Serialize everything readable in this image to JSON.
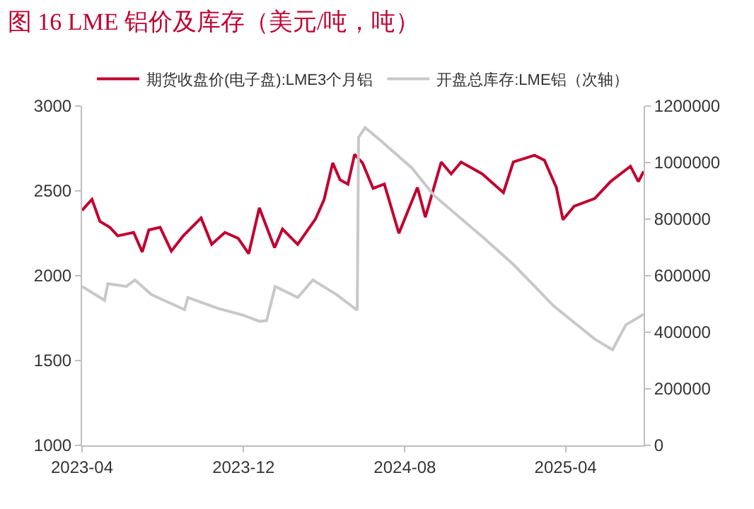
{
  "chart_data": {
    "type": "line",
    "title": "图 16 LME 铝价及库存（美元/吨，吨）",
    "series": [
      {
        "name": "期货收盘价(电子盘):LME3个月铝",
        "color": "#c00030",
        "x": [
          "2023-04-01",
          "2023-04-16",
          "2023-04-28",
          "2023-05-13",
          "2023-05-25",
          "2023-06-18",
          "2023-07-01",
          "2023-07-11",
          "2023-07-28",
          "2023-08-14",
          "2023-09-01",
          "2023-09-28",
          "2023-10-14",
          "2023-11-03",
          "2023-11-23",
          "2023-12-09",
          "2023-12-25",
          "2024-01-17",
          "2024-01-29",
          "2024-02-21",
          "2024-03-19",
          "2024-04-01",
          "2024-04-14",
          "2024-04-25",
          "2024-05-07",
          "2024-05-17",
          "2024-05-29",
          "2024-06-14",
          "2024-07-01",
          "2024-07-23",
          "2024-08-20",
          "2024-09-01",
          "2024-09-25",
          "2024-10-10",
          "2024-10-25",
          "2024-11-26",
          "2024-12-28",
          "2025-01-12",
          "2025-02-13",
          "2025-02-28",
          "2025-03-18",
          "2025-03-28",
          "2025-04-14",
          "2025-05-15",
          "2025-06-08",
          "2025-07-08",
          "2025-07-20",
          "2025-07-28"
        ],
        "values": [
          2385,
          2450,
          2320,
          2285,
          2235,
          2255,
          2140,
          2270,
          2285,
          2145,
          2235,
          2340,
          2185,
          2255,
          2220,
          2130,
          2400,
          2165,
          2275,
          2185,
          2335,
          2450,
          2665,
          2565,
          2540,
          2715,
          2665,
          2515,
          2540,
          2250,
          2520,
          2345,
          2670,
          2600,
          2670,
          2600,
          2490,
          2670,
          2710,
          2680,
          2520,
          2330,
          2410,
          2455,
          2555,
          2645,
          2555,
          2615
        ]
      },
      {
        "name": "开盘总库存:LME铝（次轴）",
        "color": "#c8c8c8",
        "axis": "y2",
        "x": [
          "2023-04-01",
          "2023-05-05",
          "2023-05-10",
          "2023-06-07",
          "2023-06-20",
          "2023-07-15",
          "2023-09-03",
          "2023-09-08",
          "2023-10-24",
          "2023-11-30",
          "2023-12-25",
          "2024-01-05",
          "2024-01-18",
          "2024-02-21",
          "2024-03-15",
          "2024-04-20",
          "2024-05-21",
          "2024-05-23",
          "2024-06-02",
          "2024-06-25",
          "2024-08-12",
          "2024-09-14",
          "2024-11-26",
          "2025-01-12",
          "2025-03-14",
          "2025-05-15",
          "2025-06-11",
          "2025-07-01",
          "2025-07-28"
        ],
        "values": [
          562000,
          513000,
          572000,
          562000,
          585000,
          533000,
          480000,
          523000,
          484000,
          461000,
          439000,
          441000,
          562000,
          523000,
          585000,
          533000,
          478000,
          1089000,
          1124000,
          1079000,
          980000,
          884000,
          738000,
          640000,
          493000,
          376000,
          338000,
          426000,
          464000
        ]
      }
    ],
    "xlim": [
      "2023-04-01",
      "2025-07-28"
    ],
    "xticks": [
      "2023-04",
      "2023-12",
      "2024-08",
      "2025-04"
    ],
    "ylim": [
      1000,
      3000
    ],
    "yticks": [
      1000,
      1500,
      2000,
      2500,
      3000
    ],
    "y2lim": [
      0,
      1200000
    ],
    "y2ticks": [
      0,
      200000,
      400000,
      600000,
      800000,
      1000000,
      1200000
    ],
    "legend": "top",
    "marker": "none",
    "line_style": "solid"
  }
}
